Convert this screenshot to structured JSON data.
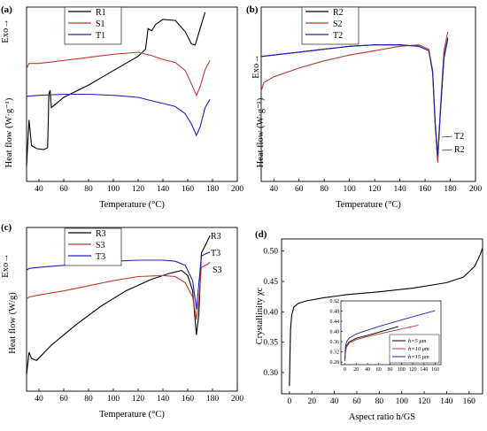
{
  "chart_data": [
    {
      "panel": "(a)",
      "type": "line",
      "xlabel": "Temperature (°C)",
      "ylabel": "Heat flow (W·g⁻¹)",
      "exo_label": "Exo→",
      "xlim": [
        30,
        200
      ],
      "xticks": [
        40,
        60,
        80,
        100,
        120,
        140,
        160,
        180,
        200
      ],
      "legend": "top-left",
      "series": [
        {
          "name": "R1",
          "color": "#000000",
          "points": [
            [
              30,
              -4.5
            ],
            [
              32,
              0.0
            ],
            [
              34,
              -2.5
            ],
            [
              38,
              -2.8
            ],
            [
              44,
              -2.9
            ],
            [
              47,
              -2.7
            ],
            [
              48,
              2.5
            ],
            [
              49,
              2.9
            ],
            [
              50,
              1.2
            ],
            [
              60,
              2.2
            ],
            [
              80,
              3.4
            ],
            [
              100,
              4.8
            ],
            [
              120,
              6.2
            ],
            [
              126,
              6.9
            ],
            [
              128,
              8.9
            ],
            [
              131,
              8.7
            ],
            [
              134,
              9.3
            ],
            [
              140,
              9.8
            ],
            [
              150,
              9.7
            ],
            [
              158,
              8.6
            ],
            [
              163,
              7.4
            ],
            [
              166,
              7.3
            ],
            [
              170,
              8.9
            ],
            [
              174,
              10.5
            ]
          ]
        },
        {
          "name": "S1",
          "color": "#c0392b",
          "points": [
            [
              30,
              5.0
            ],
            [
              32,
              5.5
            ],
            [
              40,
              5.5
            ],
            [
              60,
              5.8
            ],
            [
              80,
              6.1
            ],
            [
              100,
              6.4
            ],
            [
              120,
              6.6
            ],
            [
              130,
              6.3
            ],
            [
              140,
              5.9
            ],
            [
              150,
              5.6
            ],
            [
              158,
              4.8
            ],
            [
              163,
              3.5
            ],
            [
              167,
              2.4
            ],
            [
              170,
              3.2
            ],
            [
              174,
              4.9
            ],
            [
              178,
              5.8
            ]
          ]
        },
        {
          "name": "T1",
          "color": "#2020c0",
          "points": [
            [
              30,
              2.3
            ],
            [
              40,
              2.4
            ],
            [
              60,
              2.5
            ],
            [
              80,
              2.5
            ],
            [
              100,
              2.4
            ],
            [
              120,
              2.2
            ],
            [
              130,
              1.9
            ],
            [
              140,
              1.6
            ],
            [
              150,
              1.3
            ],
            [
              158,
              0.6
            ],
            [
              163,
              -0.4
            ],
            [
              167,
              -1.5
            ],
            [
              170,
              -0.7
            ],
            [
              174,
              1.2
            ],
            [
              178,
              2.0
            ]
          ]
        }
      ]
    },
    {
      "panel": "(b)",
      "type": "line",
      "xlabel": "Temperature (°C)",
      "ylabel": "Heat flow (W·g⁻¹)",
      "exo_label": "Exo→",
      "xlim": [
        30,
        200
      ],
      "xticks": [
        40,
        60,
        80,
        100,
        120,
        140,
        160,
        180,
        200
      ],
      "legend": "top-right",
      "annotations": [
        "T2",
        "R2"
      ],
      "series": [
        {
          "name": "R2",
          "color": "#000000",
          "points": [
            [
              30,
              7.6
            ],
            [
              40,
              7.7
            ],
            [
              60,
              7.9
            ],
            [
              80,
              8.1
            ],
            [
              100,
              8.3
            ],
            [
              120,
              8.4
            ],
            [
              140,
              8.4
            ],
            [
              155,
              8.3
            ],
            [
              163,
              8.0
            ],
            [
              166,
              6.5
            ],
            [
              168,
              3.0
            ],
            [
              170,
              0.4
            ],
            [
              172,
              3.5
            ],
            [
              175,
              7.5
            ],
            [
              178,
              8.8
            ]
          ]
        },
        {
          "name": "S2",
          "color": "#c0392b",
          "points": [
            [
              30,
              5.2
            ],
            [
              32,
              5.8
            ],
            [
              40,
              6.2
            ],
            [
              60,
              6.8
            ],
            [
              80,
              7.3
            ],
            [
              100,
              7.7
            ],
            [
              120,
              8.0
            ],
            [
              140,
              8.3
            ],
            [
              155,
              8.4
            ],
            [
              163,
              8.1
            ],
            [
              166,
              6.6
            ],
            [
              168,
              3.0
            ],
            [
              170,
              0.3
            ],
            [
              172,
              3.8
            ],
            [
              175,
              8.0
            ],
            [
              178,
              9.3
            ]
          ]
        },
        {
          "name": "T2",
          "color": "#2020c0",
          "points": [
            [
              30,
              7.6
            ],
            [
              40,
              7.7
            ],
            [
              60,
              7.9
            ],
            [
              80,
              8.1
            ],
            [
              100,
              8.3
            ],
            [
              120,
              8.4
            ],
            [
              140,
              8.4
            ],
            [
              155,
              8.3
            ],
            [
              163,
              8.0
            ],
            [
              166,
              6.6
            ],
            [
              168,
              3.2
            ],
            [
              170,
              0.8
            ],
            [
              172,
              3.6
            ],
            [
              175,
              7.6
            ],
            [
              178,
              8.9
            ]
          ]
        }
      ]
    },
    {
      "panel": "(c)",
      "type": "line",
      "xlabel": "Temperature (°C)",
      "ylabel": "Heat flow (W/g)",
      "exo_label": "Exo→",
      "xlim": [
        30,
        200
      ],
      "xticks": [
        40,
        60,
        80,
        100,
        120,
        140,
        160,
        180,
        200
      ],
      "legend": "top-right",
      "annotations": [
        "R3",
        "T3",
        "S3"
      ],
      "series": [
        {
          "name": "R3",
          "color": "#000000",
          "points": [
            [
              30,
              -3.4
            ],
            [
              32,
              -1.2
            ],
            [
              34,
              -1.8
            ],
            [
              38,
              -2.0
            ],
            [
              50,
              -0.5
            ],
            [
              70,
              1.5
            ],
            [
              90,
              3.3
            ],
            [
              110,
              4.8
            ],
            [
              130,
              5.9
            ],
            [
              145,
              6.5
            ],
            [
              155,
              6.8
            ],
            [
              160,
              6.3
            ],
            [
              164,
              4.8
            ],
            [
              167,
              0.5
            ],
            [
              169,
              2.5
            ],
            [
              171,
              8.5
            ],
            [
              174,
              9.2
            ],
            [
              178,
              10.2
            ]
          ]
        },
        {
          "name": "S3",
          "color": "#c0392b",
          "points": [
            [
              30,
              4.0
            ],
            [
              32,
              4.2
            ],
            [
              40,
              4.4
            ],
            [
              60,
              4.8
            ],
            [
              80,
              5.3
            ],
            [
              100,
              5.8
            ],
            [
              120,
              6.2
            ],
            [
              140,
              6.3
            ],
            [
              150,
              6.2
            ],
            [
              158,
              5.6
            ],
            [
              164,
              4.2
            ],
            [
              167,
              2.0
            ],
            [
              169,
              4.0
            ],
            [
              171,
              7.1
            ],
            [
              176,
              7.4
            ],
            [
              178,
              7.6
            ]
          ]
        },
        {
          "name": "T3",
          "color": "#2020c0",
          "points": [
            [
              30,
              6.8
            ],
            [
              32,
              7.0
            ],
            [
              40,
              7.1
            ],
            [
              60,
              7.3
            ],
            [
              80,
              7.5
            ],
            [
              100,
              7.7
            ],
            [
              120,
              7.8
            ],
            [
              140,
              7.8
            ],
            [
              150,
              7.7
            ],
            [
              158,
              7.3
            ],
            [
              164,
              5.8
            ],
            [
              167,
              3.0
            ],
            [
              169,
              5.5
            ],
            [
              171,
              8.2
            ],
            [
              174,
              8.4
            ],
            [
              178,
              8.6
            ]
          ]
        }
      ]
    },
    {
      "panel": "(d)",
      "type": "line",
      "xlabel": "Aspect ratio h/GS",
      "ylabel": "Crystallinity χc",
      "xlim": [
        -7,
        172
      ],
      "ylim": [
        0.265,
        0.52
      ],
      "xticks": [
        0,
        20,
        40,
        60,
        80,
        100,
        120,
        140,
        160
      ],
      "yticks": [
        0.3,
        0.35,
        0.4,
        0.45,
        0.5
      ],
      "series": [
        {
          "name": "main",
          "color": "#000000",
          "points": [
            [
              0,
              0.278
            ],
            [
              0.5,
              0.33
            ],
            [
              1,
              0.37
            ],
            [
              2,
              0.395
            ],
            [
              4,
              0.408
            ],
            [
              8,
              0.414
            ],
            [
              15,
              0.418
            ],
            [
              30,
              0.423
            ],
            [
              50,
              0.428
            ],
            [
              80,
              0.433
            ],
            [
              110,
              0.439
            ],
            [
              140,
              0.448
            ],
            [
              155,
              0.457
            ],
            [
              165,
              0.475
            ],
            [
              170,
              0.495
            ],
            [
              172,
              0.505
            ]
          ]
        }
      ],
      "inset": {
        "xlim": [
          -7,
          170
        ],
        "ylim": [
          0.27,
          0.52
        ],
        "xticks": [
          0,
          20,
          40,
          60,
          80,
          100,
          120,
          140,
          160
        ],
        "yticks": [
          0.28,
          0.32,
          0.36,
          0.4,
          0.44,
          0.48,
          0.52
        ],
        "series": [
          {
            "name": "h=5 μm",
            "color": "#000000",
            "points": [
              [
                0,
                0.285
              ],
              [
                1,
                0.32
              ],
              [
                3,
                0.345
              ],
              [
                8,
                0.36
              ],
              [
                20,
                0.373
              ],
              [
                40,
                0.385
              ],
              [
                60,
                0.397
              ],
              [
                80,
                0.41
              ],
              [
                95,
                0.42
              ]
            ]
          },
          {
            "name": "h=10 μm",
            "color": "#c0392b",
            "points": [
              [
                0,
                0.285
              ],
              [
                1,
                0.315
              ],
              [
                3,
                0.34
              ],
              [
                8,
                0.355
              ],
              [
                20,
                0.368
              ],
              [
                40,
                0.38
              ],
              [
                60,
                0.39
              ],
              [
                80,
                0.4
              ],
              [
                100,
                0.41
              ],
              [
                120,
                0.42
              ],
              [
                130,
                0.425
              ]
            ]
          },
          {
            "name": "h=15 μm",
            "color": "#2020c0",
            "points": [
              [
                0,
                0.29
              ],
              [
                1,
                0.34
              ],
              [
                3,
                0.36
              ],
              [
                8,
                0.375
              ],
              [
                20,
                0.39
              ],
              [
                40,
                0.405
              ],
              [
                60,
                0.42
              ],
              [
                80,
                0.432
              ],
              [
                100,
                0.445
              ],
              [
                120,
                0.458
              ],
              [
                140,
                0.47
              ],
              [
                160,
                0.482
              ]
            ]
          }
        ]
      }
    }
  ]
}
